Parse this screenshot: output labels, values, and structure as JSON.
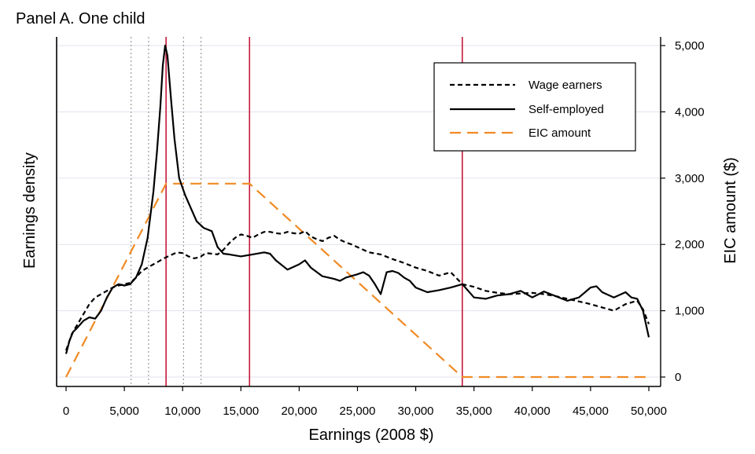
{
  "chart_data": {
    "type": "line",
    "title": "Panel A. One child",
    "xlabel": "Earnings (2008 $)",
    "ylabel_left": "Earnings density",
    "ylabel_right": "EIC amount ($)",
    "xlim": [
      0,
      50000
    ],
    "ylim_right": [
      0,
      5000
    ],
    "xticks": [
      0,
      5000,
      10000,
      15000,
      20000,
      25000,
      30000,
      35000,
      40000,
      45000,
      50000
    ],
    "xtick_labels": [
      "0",
      "5,000",
      "10,000",
      "15,000",
      "20,000",
      "25,000",
      "30,000",
      "35,000",
      "40,000",
      "45,000",
      "50,000"
    ],
    "yticks_right": [
      0,
      1000,
      2000,
      3000,
      4000,
      5000
    ],
    "ytick_labels_right": [
      "0",
      "1,000",
      "2,000",
      "3,000",
      "4,000",
      "5,000"
    ],
    "grid": true,
    "legend_position": "top-right",
    "kink_lines_x": [
      8580,
      15740,
      33995
    ],
    "dotted_lines_x": [
      5580,
      7080,
      10080,
      11580
    ],
    "series": [
      {
        "name": "Wage earners",
        "style": "dashed",
        "color": "#000000",
        "x": [
          0,
          500,
          1000,
          1500,
          2000,
          2500,
          3000,
          3500,
          4000,
          4500,
          5000,
          5500,
          6000,
          6500,
          7000,
          7500,
          8000,
          8500,
          9000,
          9500,
          10000,
          10500,
          11000,
          11500,
          12000,
          12500,
          13000,
          13500,
          14000,
          14500,
          15000,
          15500,
          16000,
          16500,
          17000,
          17500,
          18000,
          18500,
          19000,
          19500,
          20000,
          20500,
          21000,
          21500,
          22000,
          22500,
          23000,
          23500,
          24000,
          24500,
          25000,
          26000,
          27000,
          28000,
          29000,
          30000,
          31000,
          32000,
          33000,
          34000,
          35000,
          36000,
          37000,
          38000,
          39000,
          40000,
          41000,
          42000,
          43000,
          44000,
          45000,
          46000,
          47000,
          48000,
          49000,
          49500,
          50000
        ],
        "y": [
          400,
          650,
          800,
          950,
          1100,
          1200,
          1250,
          1300,
          1350,
          1380,
          1400,
          1420,
          1500,
          1600,
          1650,
          1700,
          1750,
          1800,
          1840,
          1880,
          1870,
          1820,
          1790,
          1810,
          1870,
          1860,
          1850,
          1920,
          2020,
          2100,
          2150,
          2130,
          2100,
          2150,
          2190,
          2190,
          2170,
          2160,
          2190,
          2170,
          2160,
          2200,
          2120,
          2080,
          2050,
          2100,
          2130,
          2070,
          2030,
          2000,
          1960,
          1880,
          1850,
          1780,
          1720,
          1650,
          1600,
          1530,
          1580,
          1400,
          1360,
          1300,
          1270,
          1250,
          1260,
          1270,
          1250,
          1220,
          1180,
          1140,
          1100,
          1050,
          1000,
          1100,
          1150,
          1020,
          800
        ]
      },
      {
        "name": "Self-employed",
        "style": "solid",
        "color": "#000000",
        "x": [
          0,
          300,
          600,
          1000,
          1500,
          2000,
          2500,
          3000,
          3500,
          4000,
          4500,
          5000,
          5500,
          6000,
          6500,
          7000,
          7500,
          7800,
          8100,
          8300,
          8500,
          8700,
          9000,
          9300,
          9700,
          10200,
          10700,
          11200,
          11800,
          12500,
          13000,
          13500,
          14000,
          15000,
          16000,
          17000,
          17500,
          18000,
          19000,
          20000,
          20500,
          21000,
          22000,
          23000,
          23500,
          24000,
          25000,
          25500,
          26000,
          26500,
          27000,
          27500,
          28000,
          28500,
          29000,
          29500,
          30000,
          31000,
          32000,
          33000,
          34000,
          35000,
          36000,
          37000,
          38000,
          39000,
          40000,
          41000,
          42000,
          43000,
          44000,
          45000,
          45500,
          46000,
          47000,
          48000,
          48500,
          49000,
          49500,
          50000
        ],
        "y": [
          350,
          550,
          680,
          750,
          850,
          900,
          880,
          1000,
          1200,
          1350,
          1400,
          1380,
          1400,
          1500,
          1700,
          2100,
          2800,
          3400,
          4100,
          4700,
          5000,
          4850,
          4200,
          3600,
          3000,
          2750,
          2550,
          2350,
          2250,
          2200,
          1960,
          1860,
          1850,
          1820,
          1850,
          1880,
          1860,
          1760,
          1620,
          1700,
          1760,
          1650,
          1520,
          1480,
          1450,
          1500,
          1550,
          1580,
          1530,
          1400,
          1250,
          1580,
          1600,
          1570,
          1500,
          1450,
          1350,
          1280,
          1310,
          1350,
          1400,
          1200,
          1180,
          1230,
          1250,
          1300,
          1200,
          1290,
          1220,
          1150,
          1200,
          1350,
          1370,
          1280,
          1200,
          1280,
          1200,
          1180,
          1000,
          600
        ]
      },
      {
        "name": "EIC amount",
        "style": "long-dashed",
        "color": "#f08a24",
        "x": [
          0,
          8580,
          15740,
          33995,
          50000
        ],
        "y": [
          0,
          2917,
          2917,
          0,
          0
        ]
      }
    ]
  }
}
